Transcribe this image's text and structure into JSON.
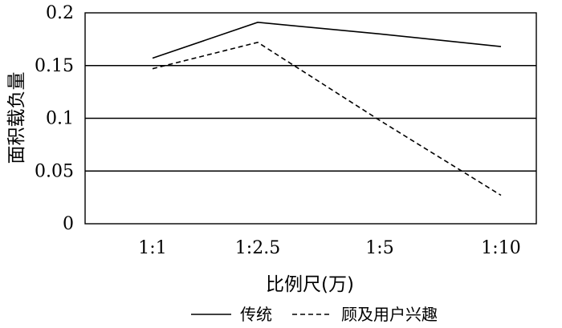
{
  "chart_data": {
    "type": "line",
    "categories": [
      "1:1",
      "1:2.5",
      "1:5",
      "1:10"
    ],
    "series": [
      {
        "name": "传统",
        "values": [
          0.157,
          0.191,
          0.18,
          0.168
        ],
        "style": "solid",
        "color": "#000000"
      },
      {
        "name": "顾及用户兴趣",
        "values": [
          0.147,
          0.172,
          0.098,
          0.027
        ],
        "style": "dashed",
        "color": "#000000"
      }
    ],
    "xlabel": "比例尺(万)",
    "ylabel": "面积载负量",
    "ylim": [
      0,
      0.2
    ],
    "yticks": [
      {
        "value": 0,
        "label": "0"
      },
      {
        "value": 0.05,
        "label": "0.05"
      },
      {
        "value": 0.1,
        "label": "0.1"
      },
      {
        "value": 0.15,
        "label": "0.15"
      },
      {
        "value": 0.2,
        "label": "0.2"
      }
    ],
    "grid": true,
    "legend_position": "bottom"
  }
}
